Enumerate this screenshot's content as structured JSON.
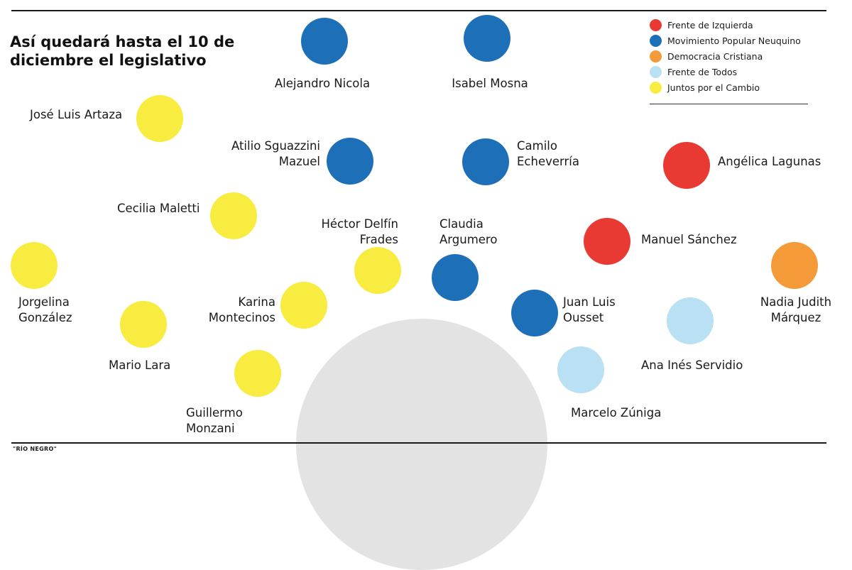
{
  "title_lines": [
    "Así quedará hasta el 10 de",
    "diciembre el legislativo"
  ],
  "source": "\"RÍO NEGRO\"",
  "colors": {
    "frente_izquierda": "#e83a33",
    "mpn": "#1d70b7",
    "democracia_cristiana": "#f49a38",
    "frente_todos": "#b9e0f3",
    "juntos_cambio": "#f7ec3f",
    "hemicycle": "#e3e3e3"
  },
  "legend": [
    {
      "label": "Frente de Izquierda",
      "color": "#e83a33"
    },
    {
      "label": "Movimiento Popular Neuquino",
      "color": "#1d70b7"
    },
    {
      "label": "Democracia Cristiana",
      "color": "#f49a38"
    },
    {
      "label": "Frente de Todos",
      "color": "#b9e0f3"
    },
    {
      "label": "Juntos por el Cambio",
      "color": "#f7ec3f"
    }
  ],
  "legislators": [
    {
      "name_lines": [
        "Alejandro Nicola"
      ],
      "party": "Movimiento Popular Neuquino"
    },
    {
      "name_lines": [
        "Isabel Mosna"
      ],
      "party": "Movimiento Popular Neuquino"
    },
    {
      "name_lines": [
        "José Luis Artaza"
      ],
      "party": "Juntos por el Cambio"
    },
    {
      "name_lines": [
        "Atilio Sguazzini",
        "Mazuel"
      ],
      "party": "Movimiento Popular Neuquino"
    },
    {
      "name_lines": [
        "Camilo",
        "Echeverría"
      ],
      "party": "Movimiento Popular Neuquino"
    },
    {
      "name_lines": [
        "Angélica Lagunas"
      ],
      "party": "Frente de Izquierda"
    },
    {
      "name_lines": [
        "Cecilia Maletti"
      ],
      "party": "Juntos por el Cambio"
    },
    {
      "name_lines": [
        "Héctor Delfín",
        "Frades"
      ],
      "party": "Juntos por el Cambio"
    },
    {
      "name_lines": [
        "Claudia",
        "Argumero"
      ],
      "party": "Movimiento Popular Neuquino"
    },
    {
      "name_lines": [
        "Manuel Sánchez"
      ],
      "party": "Frente de Izquierda"
    },
    {
      "name_lines": [
        "Jorgelina",
        "González"
      ],
      "party": "Juntos por el Cambio"
    },
    {
      "name_lines": [
        "Karina",
        "Montecinos"
      ],
      "party": "Juntos por el Cambio"
    },
    {
      "name_lines": [
        "Juan Luis",
        "Ousset"
      ],
      "party": "Movimiento Popular Neuquino"
    },
    {
      "name_lines": [
        "Nadia Judith",
        "Márquez"
      ],
      "party": "Democracia Cristiana"
    },
    {
      "name_lines": [
        "Mario Lara"
      ],
      "party": "Juntos por el Cambio"
    },
    {
      "name_lines": [
        "Ana Inés Servidio"
      ],
      "party": "Frente de Todos"
    },
    {
      "name_lines": [
        "Guillermo",
        "Monzani"
      ],
      "party": "Juntos por el Cambio"
    },
    {
      "name_lines": [
        "Marcelo Zúniga"
      ],
      "party": "Frente de Todos"
    }
  ]
}
